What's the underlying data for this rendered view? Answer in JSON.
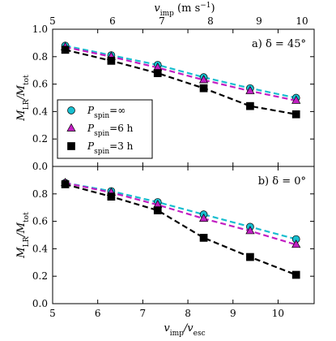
{
  "chart_data": {
    "type": "line",
    "top_axis": {
      "label": "v_imp (m s⁻¹)",
      "ticks": [
        5,
        6,
        7,
        8,
        9,
        10
      ]
    },
    "x_axis": {
      "label": "v_imp/v_esc",
      "ticks": [
        5,
        6,
        7,
        8,
        9,
        10
      ],
      "range": [
        5,
        10.8
      ]
    },
    "panels": [
      {
        "panel_label": "a) δ = 45°",
        "ylabel": "M_LR/M_tot",
        "ylim": [
          0.0,
          1.0
        ],
        "yticks": [
          0.0,
          0.2,
          0.4,
          0.6,
          0.8,
          1.0
        ],
        "x": [
          5.28,
          6.3,
          7.33,
          8.35,
          9.38,
          10.4
        ],
        "series": [
          {
            "name": "P_spin=∞",
            "color": "#17becf",
            "marker": "circle",
            "values": [
              0.88,
              0.81,
              0.74,
              0.65,
              0.57,
              0.5
            ]
          },
          {
            "name": "P_spin=6 h",
            "color": "#c21fc2",
            "marker": "triangle",
            "values": [
              0.87,
              0.8,
              0.72,
              0.63,
              0.55,
              0.48
            ]
          },
          {
            "name": "P_spin=3 h",
            "color": "#000000",
            "marker": "square",
            "values": [
              0.85,
              0.77,
              0.68,
              0.57,
              0.44,
              0.38
            ]
          }
        ]
      },
      {
        "panel_label": "b) δ = 0°",
        "ylabel": "M_LR/M_tot",
        "ylim": [
          0.0,
          1.0
        ],
        "yticks": [
          0.0,
          0.2,
          0.4,
          0.6,
          0.8
        ],
        "x": [
          5.28,
          6.3,
          7.33,
          8.35,
          9.38,
          10.4
        ],
        "series": [
          {
            "name": "P_spin=∞",
            "color": "#17becf",
            "marker": "circle",
            "values": [
              0.88,
              0.82,
              0.74,
              0.65,
              0.56,
              0.47
            ]
          },
          {
            "name": "P_spin=6 h",
            "color": "#c21fc2",
            "marker": "triangle",
            "values": [
              0.88,
              0.81,
              0.72,
              0.62,
              0.53,
              0.43
            ]
          },
          {
            "name": "P_spin=3 h",
            "color": "#000000",
            "marker": "square",
            "values": [
              0.87,
              0.78,
              0.68,
              0.48,
              0.34,
              0.21
            ]
          }
        ]
      }
    ],
    "legend": {
      "placement": "left-middle of top panel",
      "entries": [
        {
          "name": "P_spin=∞",
          "color": "#17becf",
          "marker": "circle"
        },
        {
          "name": "P_spin=6 h",
          "color": "#c21fc2",
          "marker": "triangle"
        },
        {
          "name": "P_spin=3 h",
          "color": "#000000",
          "marker": "square"
        }
      ]
    },
    "grid": false
  }
}
